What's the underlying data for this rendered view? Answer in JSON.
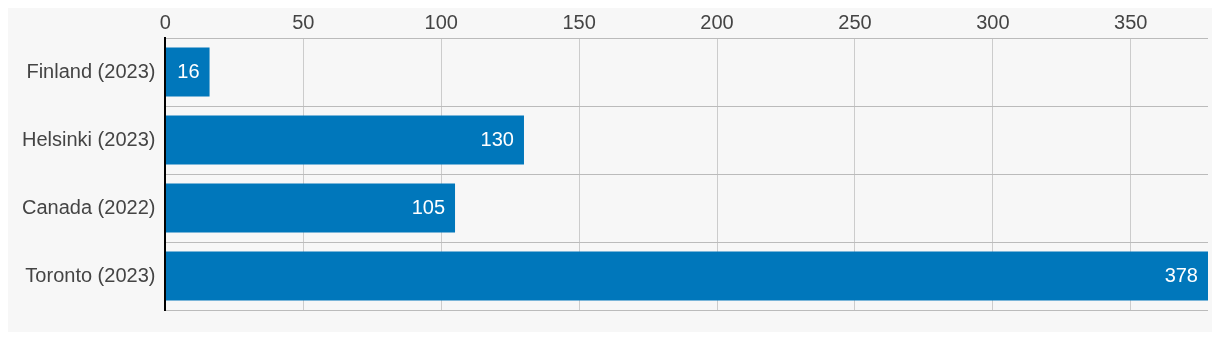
{
  "chart_data": {
    "type": "bar",
    "orientation": "horizontal",
    "categories": [
      "Finland (2023)",
      "Helsinki (2023)",
      "Canada (2022)",
      "Toronto (2023)"
    ],
    "values": [
      16,
      130,
      105,
      378
    ],
    "color": "#0077bb",
    "xlim": [
      0,
      378
    ],
    "xticks": [
      0,
      50,
      100,
      150,
      200,
      250,
      300,
      350
    ],
    "grid": true,
    "data_labels": true,
    "legend": false
  }
}
